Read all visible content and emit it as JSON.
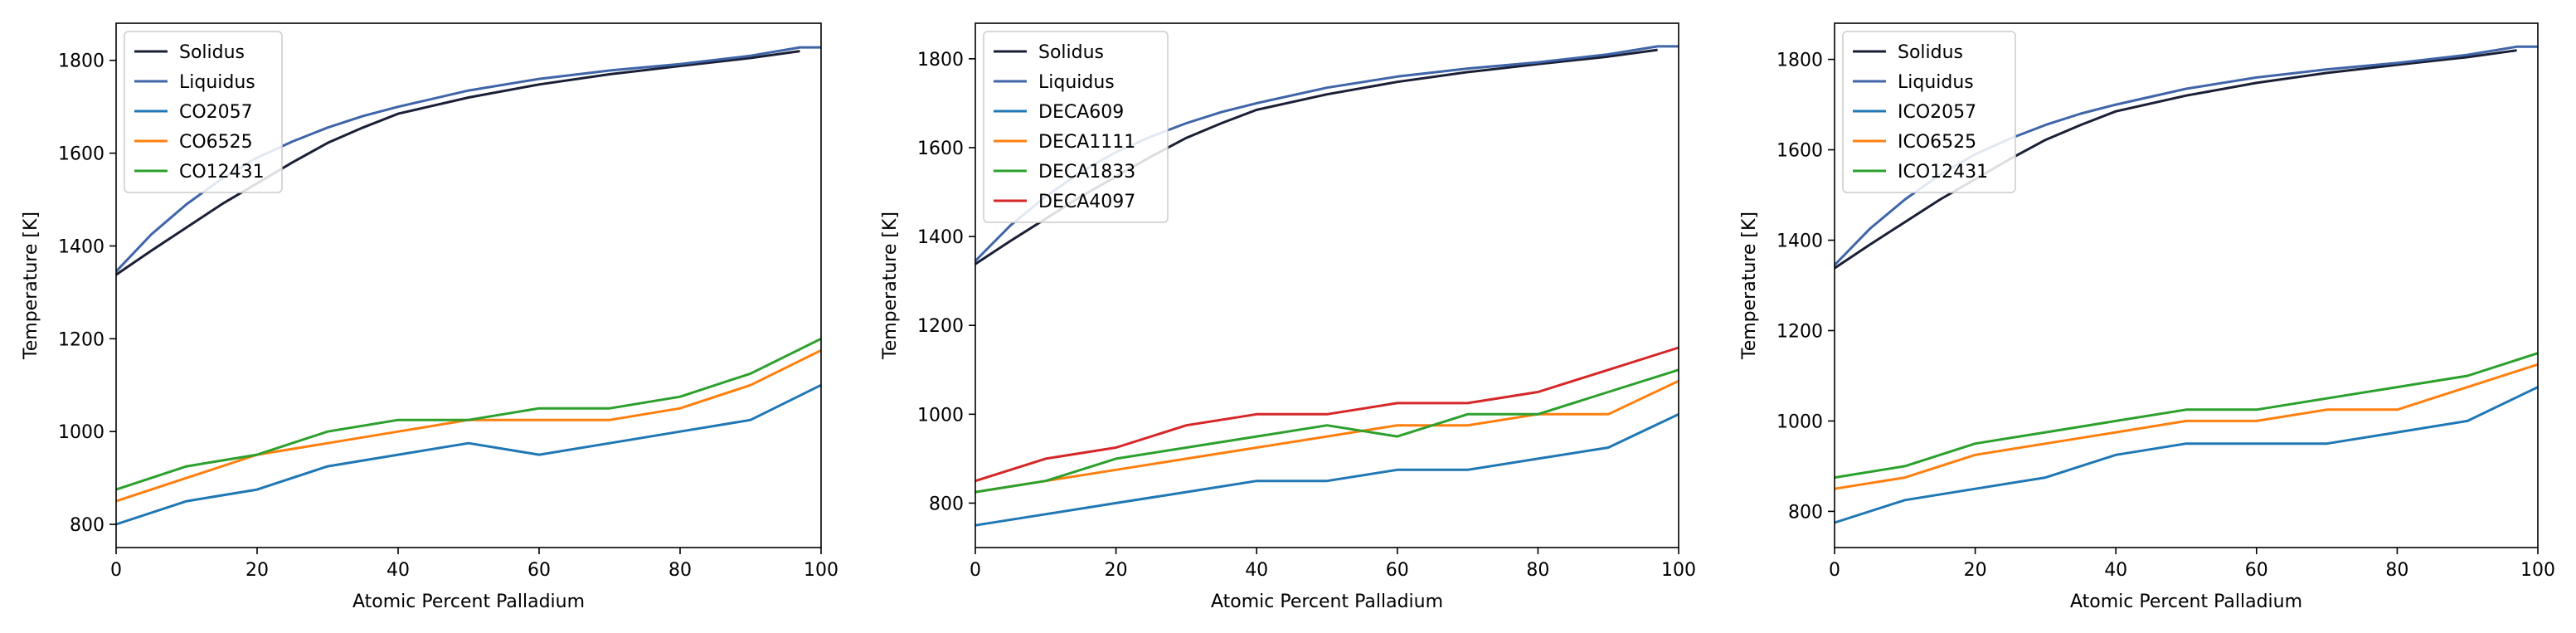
{
  "colors": {
    "solidus": "#1a1f36",
    "liquidus": "#3f64a8",
    "blue": "#1f77b4",
    "orange": "#ff7f0e",
    "green": "#2ca02c",
    "red": "#d62728"
  },
  "chart_data": [
    {
      "type": "line",
      "xlabel": "Atomic Percent Palladium",
      "ylabel": "Temperature [K]",
      "xlim": [
        0,
        100
      ],
      "ylim": [
        750,
        1880
      ],
      "xticks": [
        0,
        20,
        40,
        60,
        80,
        100
      ],
      "yticks": [
        800,
        1000,
        1200,
        1400,
        1600,
        1800
      ],
      "legend_position": "upper-left",
      "series": [
        {
          "name": "Solidus",
          "color": "#1a1f36",
          "x": [
            0,
            5,
            10,
            15,
            20,
            25,
            30,
            35,
            40,
            50,
            60,
            70,
            80,
            90,
            97
          ],
          "y": [
            1338,
            1390,
            1440,
            1490,
            1535,
            1580,
            1622,
            1655,
            1685,
            1720,
            1748,
            1770,
            1788,
            1805,
            1820
          ]
        },
        {
          "name": "Liquidus",
          "color": "#3f64a8",
          "x": [
            0,
            5,
            10,
            15,
            20,
            25,
            30,
            35,
            40,
            50,
            60,
            70,
            80,
            90,
            97,
            100
          ],
          "y": [
            1345,
            1425,
            1490,
            1545,
            1590,
            1625,
            1655,
            1680,
            1700,
            1735,
            1760,
            1778,
            1792,
            1810,
            1828,
            1828
          ]
        },
        {
          "name": "CO2057",
          "color": "#1f77b4",
          "x": [
            0,
            10,
            20,
            30,
            40,
            50,
            60,
            70,
            80,
            90,
            100
          ],
          "y": [
            800,
            850,
            875,
            925,
            950,
            975,
            950,
            975,
            1000,
            1025,
            1100
          ]
        },
        {
          "name": "CO6525",
          "color": "#ff7f0e",
          "x": [
            0,
            10,
            20,
            30,
            40,
            50,
            60,
            70,
            80,
            90,
            100
          ],
          "y": [
            850,
            900,
            950,
            975,
            1000,
            1025,
            1025,
            1025,
            1050,
            1100,
            1175
          ]
        },
        {
          "name": "CO12431",
          "color": "#2ca02c",
          "x": [
            0,
            10,
            20,
            30,
            40,
            50,
            60,
            70,
            80,
            90,
            100
          ],
          "y": [
            875,
            925,
            950,
            1000,
            1025,
            1025,
            1050,
            1050,
            1075,
            1125,
            1200
          ]
        }
      ]
    },
    {
      "type": "line",
      "xlabel": "Atomic Percent Palladium",
      "ylabel": "Temperature [K]",
      "xlim": [
        0,
        100
      ],
      "ylim": [
        700,
        1880
      ],
      "xticks": [
        0,
        20,
        40,
        60,
        80,
        100
      ],
      "yticks": [
        800,
        1000,
        1200,
        1400,
        1600,
        1800
      ],
      "legend_position": "upper-left",
      "series": [
        {
          "name": "Solidus",
          "color": "#1a1f36",
          "x": [
            0,
            5,
            10,
            15,
            20,
            25,
            30,
            35,
            40,
            50,
            60,
            70,
            80,
            90,
            97
          ],
          "y": [
            1338,
            1390,
            1440,
            1490,
            1535,
            1580,
            1622,
            1655,
            1685,
            1720,
            1748,
            1770,
            1788,
            1805,
            1820
          ]
        },
        {
          "name": "Liquidus",
          "color": "#3f64a8",
          "x": [
            0,
            5,
            10,
            15,
            20,
            25,
            30,
            35,
            40,
            50,
            60,
            70,
            80,
            90,
            97,
            100
          ],
          "y": [
            1345,
            1425,
            1490,
            1545,
            1590,
            1625,
            1655,
            1680,
            1700,
            1735,
            1760,
            1778,
            1792,
            1810,
            1828,
            1828
          ]
        },
        {
          "name": "DECA609",
          "color": "#1f77b4",
          "x": [
            0,
            10,
            20,
            30,
            40,
            50,
            60,
            70,
            80,
            90,
            100
          ],
          "y": [
            750,
            775,
            800,
            825,
            850,
            850,
            875,
            875,
            900,
            925,
            1000
          ]
        },
        {
          "name": "DECA1111",
          "color": "#ff7f0e",
          "x": [
            0,
            10,
            20,
            30,
            40,
            50,
            60,
            70,
            80,
            90,
            100
          ],
          "y": [
            825,
            850,
            875,
            900,
            925,
            950,
            975,
            975,
            1000,
            1000,
            1075
          ]
        },
        {
          "name": "DECA1833",
          "color": "#2ca02c",
          "x": [
            0,
            10,
            20,
            30,
            40,
            50,
            60,
            70,
            80,
            90,
            100
          ],
          "y": [
            825,
            850,
            900,
            925,
            950,
            975,
            950,
            1000,
            1000,
            1050,
            1100
          ]
        },
        {
          "name": "DECA4097",
          "color": "#d62728",
          "x": [
            0,
            10,
            20,
            30,
            40,
            50,
            60,
            70,
            80,
            90,
            100
          ],
          "y": [
            850,
            900,
            925,
            975,
            1000,
            1000,
            1025,
            1025,
            1050,
            1100,
            1150
          ]
        }
      ]
    },
    {
      "type": "line",
      "xlabel": "Atomic Percent Palladium",
      "ylabel": "Temperature [K]",
      "xlim": [
        0,
        100
      ],
      "ylim": [
        720,
        1880
      ],
      "xticks": [
        0,
        20,
        40,
        60,
        80,
        100
      ],
      "yticks": [
        800,
        1000,
        1200,
        1400,
        1600,
        1800
      ],
      "legend_position": "upper-left",
      "series": [
        {
          "name": "Solidus",
          "color": "#1a1f36",
          "x": [
            0,
            5,
            10,
            15,
            20,
            25,
            30,
            35,
            40,
            50,
            60,
            70,
            80,
            90,
            97
          ],
          "y": [
            1338,
            1390,
            1440,
            1490,
            1535,
            1580,
            1622,
            1655,
            1685,
            1720,
            1748,
            1770,
            1788,
            1805,
            1820
          ]
        },
        {
          "name": "Liquidus",
          "color": "#3f64a8",
          "x": [
            0,
            5,
            10,
            15,
            20,
            25,
            30,
            35,
            40,
            50,
            60,
            70,
            80,
            90,
            97,
            100
          ],
          "y": [
            1345,
            1425,
            1490,
            1545,
            1590,
            1625,
            1655,
            1680,
            1700,
            1735,
            1760,
            1778,
            1792,
            1810,
            1828,
            1828
          ]
        },
        {
          "name": "ICO2057",
          "color": "#1f77b4",
          "x": [
            0,
            10,
            20,
            30,
            40,
            50,
            60,
            70,
            80,
            90,
            100
          ],
          "y": [
            775,
            825,
            850,
            875,
            925,
            950,
            950,
            950,
            975,
            1000,
            1075
          ]
        },
        {
          "name": "ICO6525",
          "color": "#ff7f0e",
          "x": [
            0,
            10,
            20,
            30,
            40,
            50,
            60,
            70,
            80,
            90,
            100
          ],
          "y": [
            850,
            875,
            925,
            950,
            975,
            1000,
            1000,
            1025,
            1025,
            1075,
            1125
          ]
        },
        {
          "name": "ICO12431",
          "color": "#2ca02c",
          "x": [
            0,
            10,
            20,
            30,
            40,
            50,
            60,
            70,
            80,
            90,
            100
          ],
          "y": [
            875,
            900,
            950,
            975,
            1000,
            1025,
            1025,
            1050,
            1075,
            1100,
            1150
          ]
        }
      ]
    }
  ]
}
